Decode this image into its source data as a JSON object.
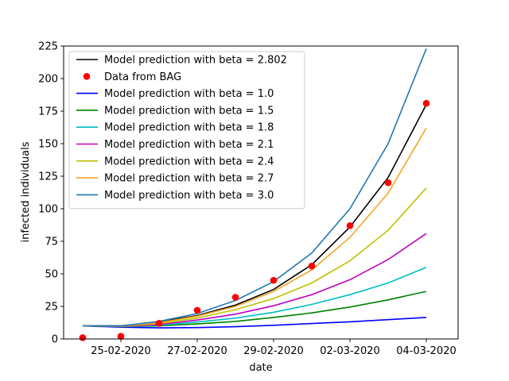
{
  "chart_data": {
    "type": "line",
    "title": "",
    "xlabel": "date",
    "ylabel": "infected individuals",
    "x": [
      "24-02-2020",
      "25-02-2020",
      "26-02-2020",
      "27-02-2020",
      "28-02-2020",
      "29-02-2020",
      "01-03-2020",
      "02-03-2020",
      "03-03-2020",
      "04-03-2020"
    ],
    "x_tick_labels": [
      "25-02-2020",
      "27-02-2020",
      "29-02-2020",
      "02-03-2020",
      "04-03-2020"
    ],
    "xlim": [
      "23-02-2020 12:00",
      "04-03-2020 20:00"
    ],
    "ylim": [
      0,
      225
    ],
    "y_ticks": [
      0,
      25,
      50,
      75,
      100,
      125,
      150,
      175,
      200,
      225
    ],
    "grid": false,
    "legend_position": "top-left",
    "series": [
      {
        "name": "Model prediction with beta = 2.802",
        "kind": "line",
        "color": "#000000",
        "values": [
          10,
          10,
          13,
          18,
          26,
          38,
          57,
          86,
          124,
          180
        ]
      },
      {
        "name": "Data from BAG",
        "kind": "scatter",
        "color": "#ff0000",
        "values": [
          1,
          2,
          12,
          22,
          32,
          45,
          56,
          87,
          120,
          181
        ]
      },
      {
        "name": "Model prediction with beta = 1.0",
        "kind": "line",
        "color": "#0000ff",
        "values": [
          10,
          9,
          8.5,
          8.7,
          9.4,
          10.5,
          11.8,
          13.2,
          14.8,
          16.5
        ]
      },
      {
        "name": "Model prediction with beta = 1.5",
        "kind": "line",
        "color": "#008000",
        "values": [
          10,
          9.5,
          10,
          11.5,
          13.5,
          16.5,
          20,
          24.5,
          30,
          36.5
        ]
      },
      {
        "name": "Model prediction with beta = 1.8",
        "kind": "line",
        "color": "#00bfbf",
        "values": [
          10,
          9.6,
          10.5,
          13,
          16,
          20.5,
          26.5,
          34,
          43,
          55
        ]
      },
      {
        "name": "Model prediction with beta = 2.1",
        "kind": "line",
        "color": "#bf00bf",
        "values": [
          10,
          9.7,
          11,
          14.5,
          19,
          25.5,
          34,
          45.5,
          61,
          81
        ]
      },
      {
        "name": "Model prediction with beta = 2.4",
        "kind": "line",
        "color": "#bfbf00",
        "values": [
          10,
          9.8,
          11.8,
          16,
          22.5,
          31,
          43,
          60,
          83.5,
          116
        ]
      },
      {
        "name": "Model prediction with beta = 2.7",
        "kind": "line",
        "color": "#f5a623",
        "values": [
          10,
          9.9,
          12.5,
          17.5,
          25,
          36.5,
          53,
          78,
          112,
          162
        ]
      },
      {
        "name": "Model prediction with beta = 3.0",
        "kind": "line",
        "color": "#1f77b4",
        "values": [
          10,
          10,
          13.5,
          19.5,
          29.5,
          44,
          66,
          100,
          150,
          223
        ]
      }
    ]
  }
}
